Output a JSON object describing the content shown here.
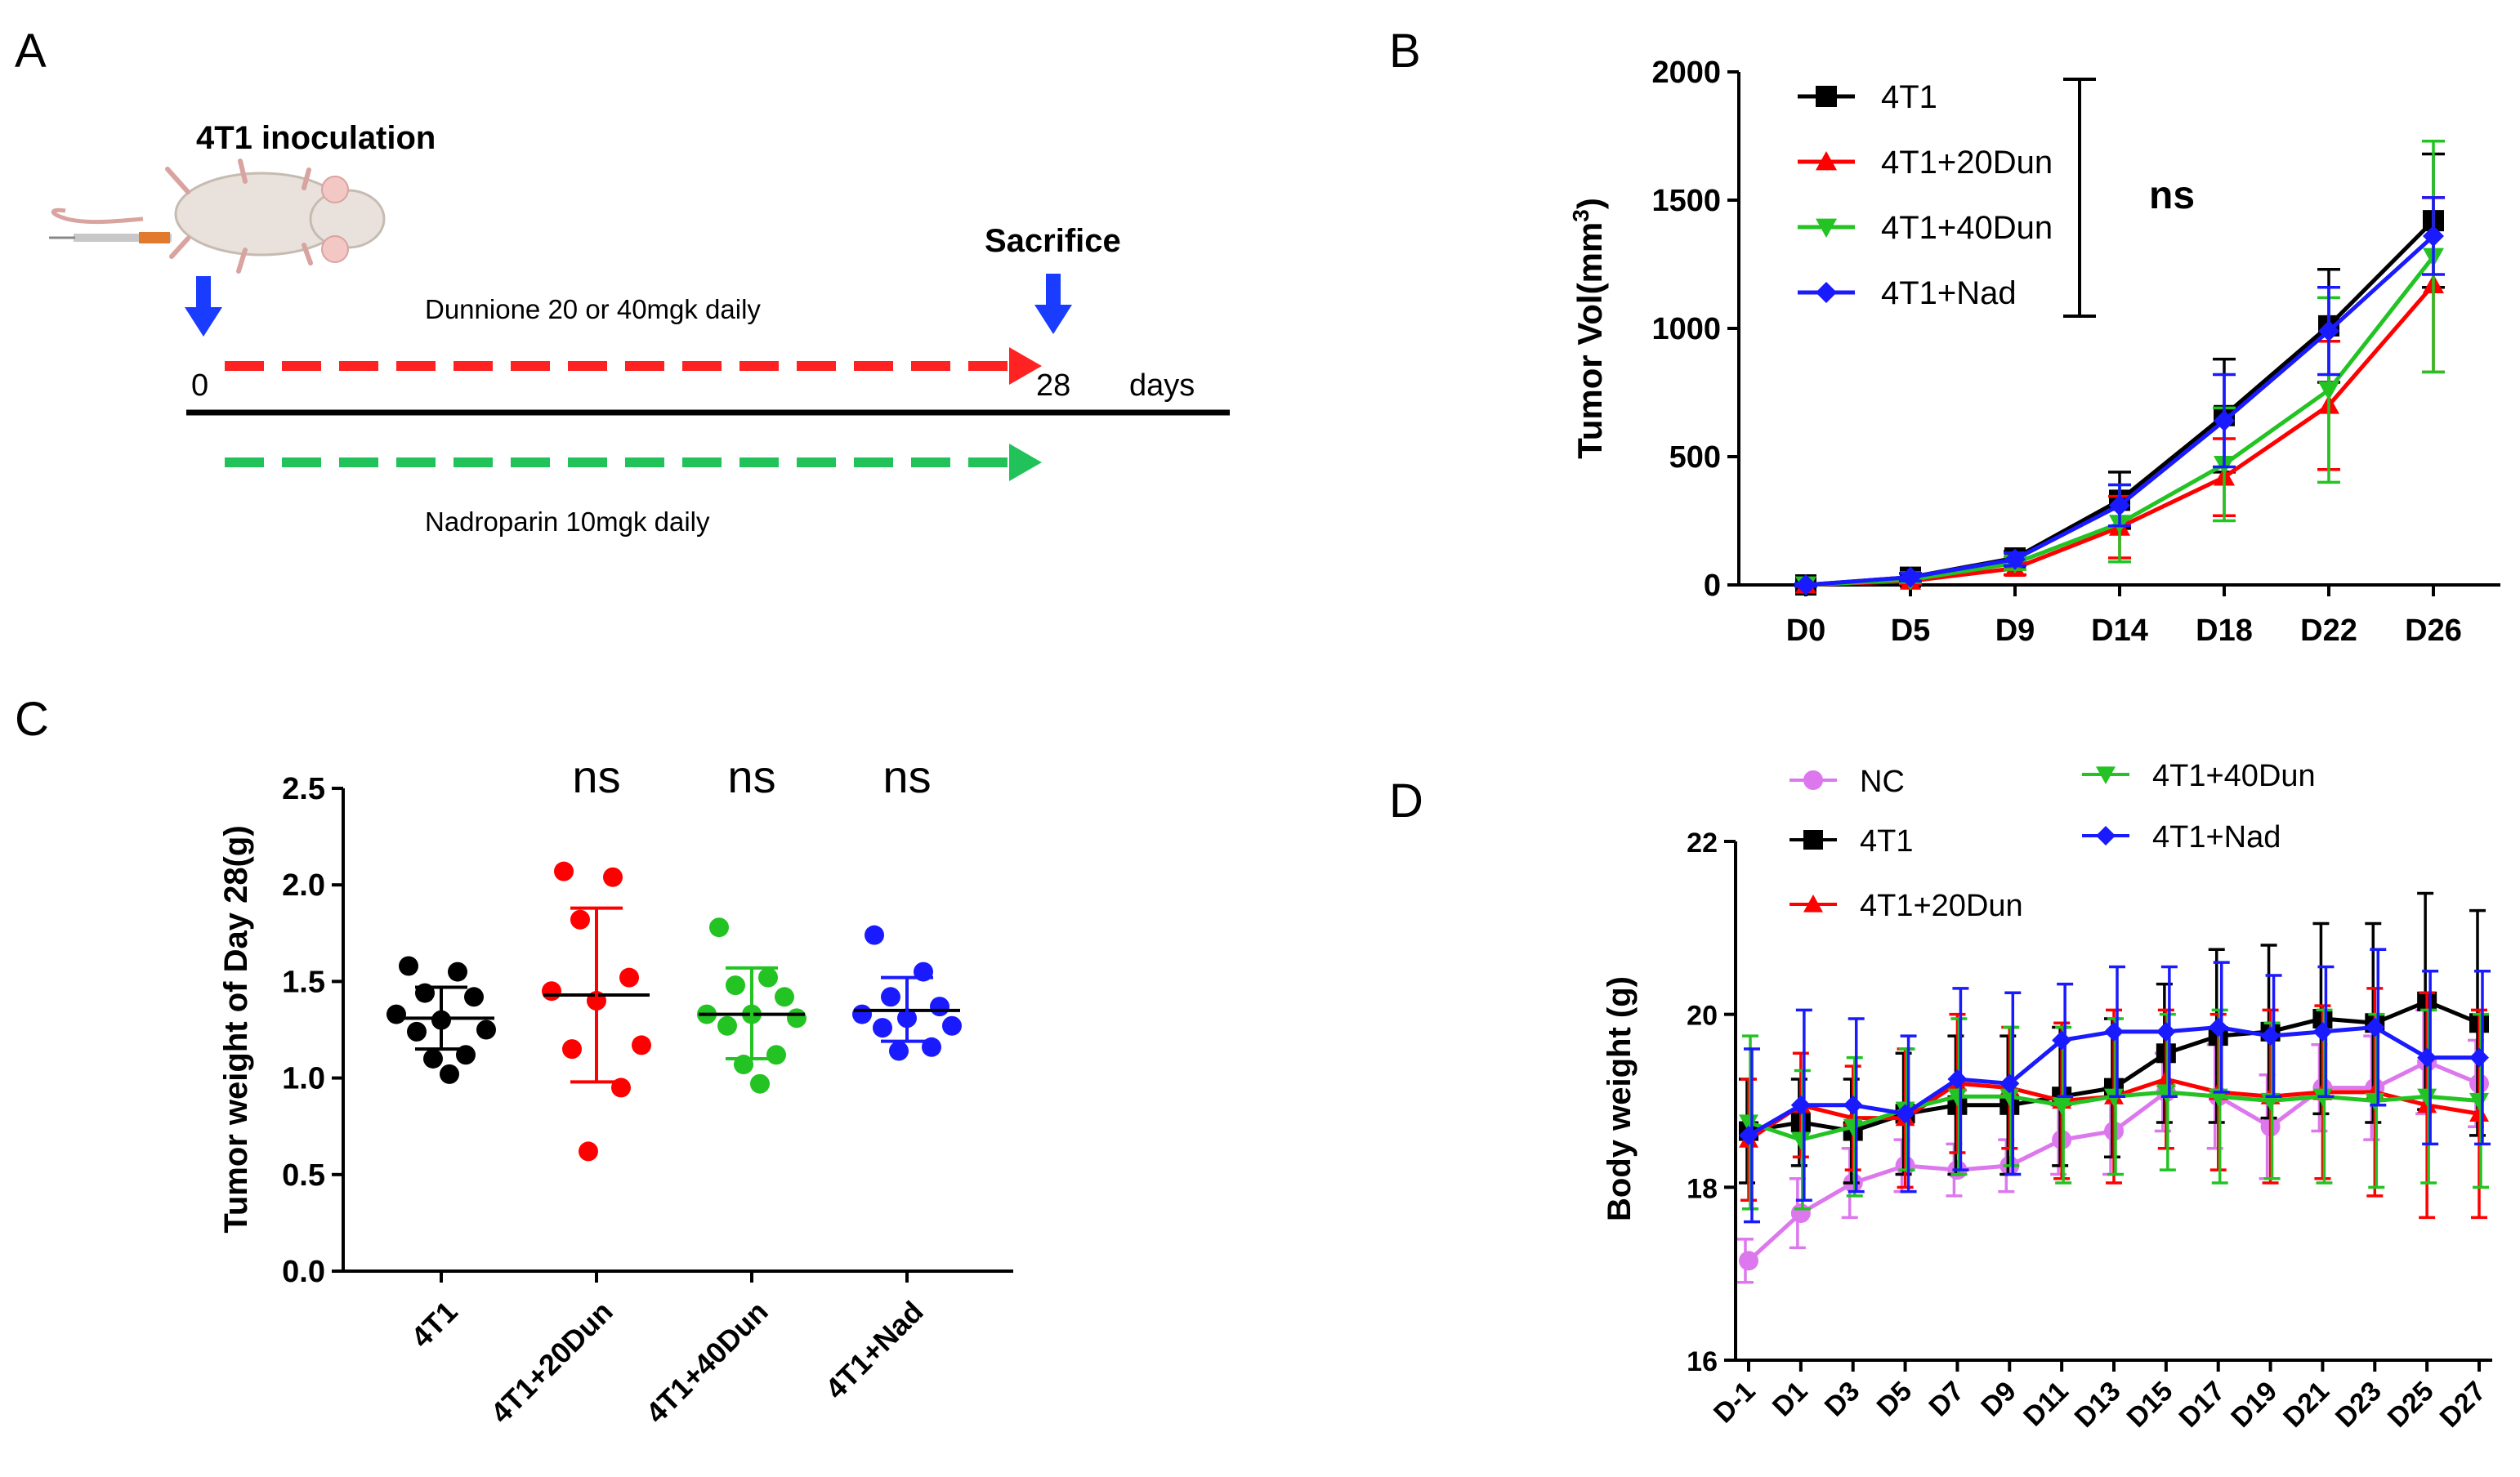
{
  "colors": {
    "black": "#000000",
    "red": "#ff0000",
    "green": "#22c322",
    "blue": "#1a1aff",
    "violet": "#dd77ee",
    "arrow_blue": "#1a3cff",
    "dash_red": "#ff2222",
    "dash_green": "#22c25a"
  },
  "panelA": {
    "letter": "A",
    "inoculation": "4T1 inoculation",
    "sacrifice": "Sacrifice",
    "dunnione": "Dunnione 20 or 40mgk daily",
    "start": "0",
    "end": "28",
    "days": "days",
    "nadroparin": "Nadroparin 10mgk daily",
    "mouse_icon": "mouse-icon"
  },
  "chart_data": [
    {
      "panel": "B",
      "type": "line",
      "title": "",
      "xlabel": "",
      "ylabel": "Tumor Vol(mm",
      "ylabel_sup": "3",
      "ylabel_end": ")",
      "categories": [
        "D0",
        "D5",
        "D9",
        "D14",
        "D18",
        "D22",
        "D26"
      ],
      "ylim": [
        0,
        2000
      ],
      "yticks": [
        0,
        500,
        1000,
        1500,
        2000
      ],
      "annotation": "ns",
      "series": [
        {
          "name": "4T1",
          "color": "#000000",
          "marker": "square",
          "values": [
            0,
            30,
            105,
            330,
            660,
            1010,
            1420
          ],
          "err": [
            5,
            15,
            25,
            110,
            220,
            220,
            260
          ]
        },
        {
          "name": "4T1+20Dun",
          "color": "#ff0000",
          "marker": "triangle-up",
          "values": [
            0,
            15,
            65,
            225,
            420,
            700,
            1170
          ],
          "err": [
            5,
            10,
            25,
            120,
            150,
            250,
            340
          ]
        },
        {
          "name": "4T1+40Dun",
          "color": "#22c322",
          "marker": "triangle-down",
          "values": [
            0,
            20,
            85,
            240,
            470,
            760,
            1280
          ],
          "err": [
            5,
            10,
            25,
            150,
            220,
            360,
            450
          ]
        },
        {
          "name": "4T1+Nad",
          "color": "#1a1aff",
          "marker": "diamond",
          "values": [
            0,
            30,
            100,
            310,
            640,
            990,
            1360
          ],
          "err": [
            5,
            15,
            25,
            80,
            180,
            170,
            150
          ]
        }
      ]
    },
    {
      "panel": "C",
      "type": "scatter",
      "title": "",
      "xlabel": "",
      "ylabel": "Tumor weight of Day 28(g)",
      "categories": [
        "4T1",
        "4T1+20Dun",
        "4T1+40Dun",
        "4T1+Nad"
      ],
      "ylim": [
        0,
        2.5
      ],
      "yticks": [
        "0.0",
        "0.5",
        "1.0",
        "1.5",
        "2.0",
        "2.5"
      ],
      "annotations": [
        "",
        "ns",
        "ns",
        "ns"
      ],
      "groups": [
        {
          "name": "4T1",
          "color": "#000000",
          "mean": 1.31,
          "sd_low": 1.15,
          "sd_high": 1.47,
          "points": [
            1.58,
            1.55,
            1.44,
            1.42,
            1.33,
            1.3,
            1.25,
            1.24,
            1.12,
            1.1,
            1.02
          ]
        },
        {
          "name": "4T1+20Dun",
          "color": "#ff0000",
          "mean": 1.43,
          "sd_low": 0.98,
          "sd_high": 1.88,
          "points": [
            2.07,
            2.04,
            1.82,
            1.52,
            1.45,
            1.4,
            1.17,
            1.15,
            0.95,
            0.62
          ]
        },
        {
          "name": "4T1+40Dun",
          "color": "#22c322",
          "mean": 1.33,
          "sd_low": 1.1,
          "sd_high": 1.57,
          "points": [
            1.78,
            1.52,
            1.48,
            1.42,
            1.33,
            1.33,
            1.31,
            1.27,
            1.12,
            1.07,
            0.97
          ]
        },
        {
          "name": "4T1+Nad",
          "color": "#1a1aff",
          "mean": 1.35,
          "sd_low": 1.19,
          "sd_high": 1.52,
          "points": [
            1.74,
            1.55,
            1.42,
            1.37,
            1.33,
            1.31,
            1.27,
            1.26,
            1.16,
            1.14
          ]
        }
      ]
    },
    {
      "panel": "D",
      "type": "line",
      "title": "",
      "xlabel": "",
      "ylabel": "Body weight (g)",
      "categories": [
        "D-1",
        "D1",
        "D3",
        "D5",
        "D7",
        "D9",
        "D11",
        "D13",
        "D15",
        "D17",
        "D19",
        "D21",
        "D23",
        "D25",
        "D27"
      ],
      "ylim": [
        16,
        22
      ],
      "yticks": [
        16,
        18,
        20,
        22
      ],
      "series": [
        {
          "name": "NC",
          "color": "#dd77ee",
          "marker": "circle",
          "values": [
            17.15,
            17.7,
            18.05,
            18.25,
            18.2,
            18.25,
            18.55,
            18.65,
            19.1,
            19.05,
            18.7,
            19.15,
            19.15,
            19.45,
            19.2
          ],
          "err": [
            0.25,
            0.4,
            0.4,
            0.3,
            0.3,
            0.3,
            0.4,
            0.5,
            0.45,
            0.6,
            0.6,
            0.5,
            0.6,
            0.6,
            0.5
          ]
        },
        {
          "name": "4T1",
          "color": "#000000",
          "marker": "square",
          "values": [
            18.65,
            18.75,
            18.65,
            18.85,
            18.95,
            18.95,
            19.05,
            19.15,
            19.55,
            19.75,
            19.8,
            19.95,
            19.9,
            20.15,
            19.9
          ],
          "err": [
            0.6,
            0.5,
            0.6,
            0.7,
            0.8,
            0.8,
            0.8,
            0.8,
            0.8,
            1.0,
            1.0,
            1.1,
            1.15,
            1.25,
            1.3
          ]
        },
        {
          "name": "4T1+20Dun",
          "color": "#ff0000",
          "marker": "triangle-up",
          "values": [
            18.55,
            18.95,
            18.8,
            18.8,
            19.2,
            19.15,
            19.0,
            19.05,
            19.25,
            19.1,
            19.05,
            19.1,
            19.1,
            18.95,
            18.85
          ],
          "err": [
            0.7,
            0.6,
            0.6,
            0.8,
            0.8,
            0.7,
            0.9,
            1.0,
            0.8,
            0.9,
            1.0,
            1.0,
            1.2,
            1.3,
            1.2
          ]
        },
        {
          "name": "4T1+40Dun",
          "color": "#22c322",
          "marker": "triangle-down",
          "values": [
            18.75,
            18.55,
            18.7,
            18.9,
            19.05,
            19.05,
            18.95,
            19.05,
            19.1,
            19.05,
            19.0,
            19.05,
            19.0,
            19.05,
            19.0
          ],
          "err": [
            1.0,
            0.8,
            0.8,
            0.7,
            0.9,
            0.8,
            0.9,
            0.9,
            0.9,
            1.0,
            0.9,
            1.0,
            1.0,
            1.0,
            1.0
          ]
        },
        {
          "name": "4T1+Nad",
          "color": "#1a1aff",
          "marker": "diamond",
          "values": [
            18.6,
            18.95,
            18.95,
            18.85,
            19.25,
            19.2,
            19.7,
            19.8,
            19.8,
            19.85,
            19.75,
            19.8,
            19.85,
            19.5,
            19.5
          ],
          "err": [
            1.0,
            1.1,
            1.0,
            0.9,
            1.05,
            1.05,
            0.65,
            0.75,
            0.75,
            0.75,
            0.7,
            0.75,
            0.9,
            1.0,
            1.0
          ]
        }
      ]
    }
  ],
  "labels": {
    "B": "B",
    "C": "C",
    "D": "D"
  }
}
